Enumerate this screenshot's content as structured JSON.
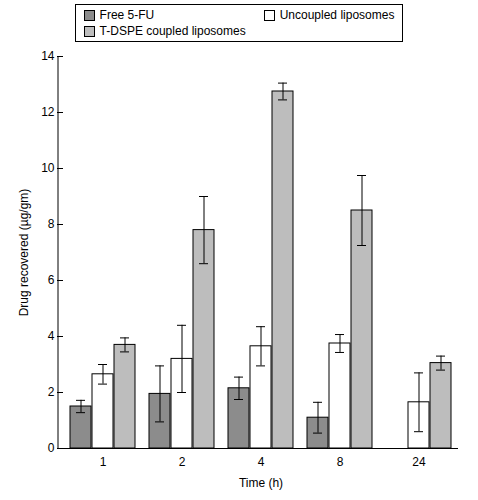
{
  "chart_data": {
    "type": "bar",
    "x_label": "Time (h)",
    "y_label": "Drug recovered (µg/gm)",
    "categories": [
      1,
      2,
      4,
      8,
      24
    ],
    "series": [
      {
        "name": "Free 5-FU",
        "color": "#8c8c8c",
        "values": [
          1.5,
          1.95,
          2.15,
          1.1,
          null
        ],
        "errors": [
          0.22,
          1.0,
          0.4,
          0.55,
          null
        ]
      },
      {
        "name": "Uncoupled liposomes",
        "color": "#ffffff",
        "values": [
          2.65,
          3.2,
          3.65,
          3.75,
          1.65
        ],
        "errors": [
          0.35,
          1.2,
          0.7,
          0.32,
          1.05
        ]
      },
      {
        "name": "T-DSPE coupled liposomes",
        "color": "#bdbdbd",
        "values": [
          3.7,
          7.8,
          12.75,
          8.5,
          3.05
        ],
        "errors": [
          0.25,
          1.2,
          0.3,
          1.25,
          0.25
        ]
      }
    ],
    "ylim": [
      0,
      14
    ],
    "yticks": [
      0,
      2,
      4,
      6,
      8,
      10,
      12,
      14
    ],
    "grid": false,
    "legend": "top"
  }
}
